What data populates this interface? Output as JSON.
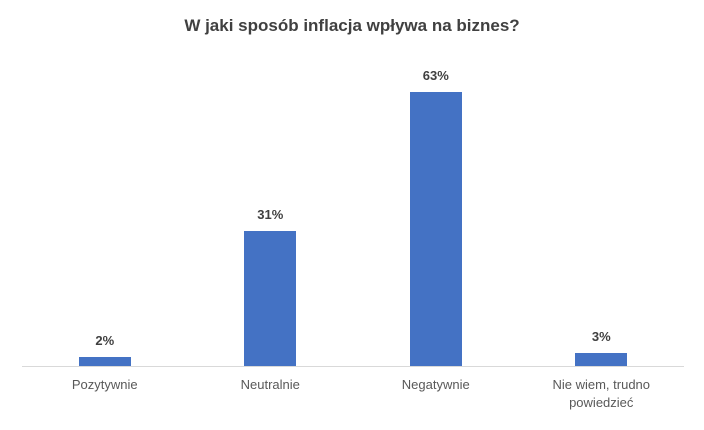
{
  "chart_data": {
    "type": "bar",
    "title": "W jaki sposób inflacja wpływa na biznes?",
    "categories": [
      "Pozytywnie",
      "Neutralnie",
      "Negatywnie",
      "Nie wiem, trudno powiedzieć"
    ],
    "values": [
      2,
      31,
      63,
      3
    ],
    "value_labels": [
      "2%",
      "31%",
      "63%",
      "3%"
    ],
    "color": "#4472c4"
  }
}
